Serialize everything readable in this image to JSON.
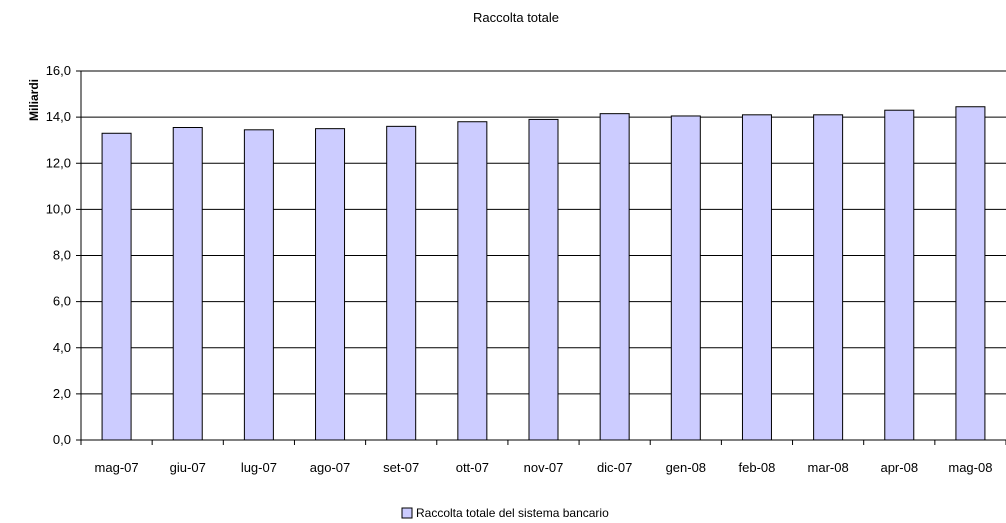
{
  "chart_data": {
    "type": "bar",
    "title": "Raccolta totale",
    "ylabel": "Miliardi",
    "xlabel": "",
    "categories": [
      "mag-07",
      "giu-07",
      "lug-07",
      "ago-07",
      "set-07",
      "ott-07",
      "nov-07",
      "dic-07",
      "gen-08",
      "feb-08",
      "mar-08",
      "apr-08",
      "mag-08"
    ],
    "series": [
      {
        "name": "Raccolta totale del sistema bancario",
        "values": [
          13.3,
          13.55,
          13.45,
          13.5,
          13.6,
          13.8,
          13.9,
          14.15,
          14.05,
          14.1,
          14.1,
          14.3,
          14.45
        ]
      }
    ],
    "ylim": [
      0,
      16
    ],
    "yticks": [
      "0,0",
      "2,0",
      "4,0",
      "6,0",
      "8,0",
      "10,0",
      "12,0",
      "14,0",
      "16,0"
    ],
    "grid": true,
    "legend_position": "bottom",
    "colors": {
      "bar_fill": "#ccccff",
      "bar_stroke": "#000000",
      "grid": "#000000"
    }
  }
}
